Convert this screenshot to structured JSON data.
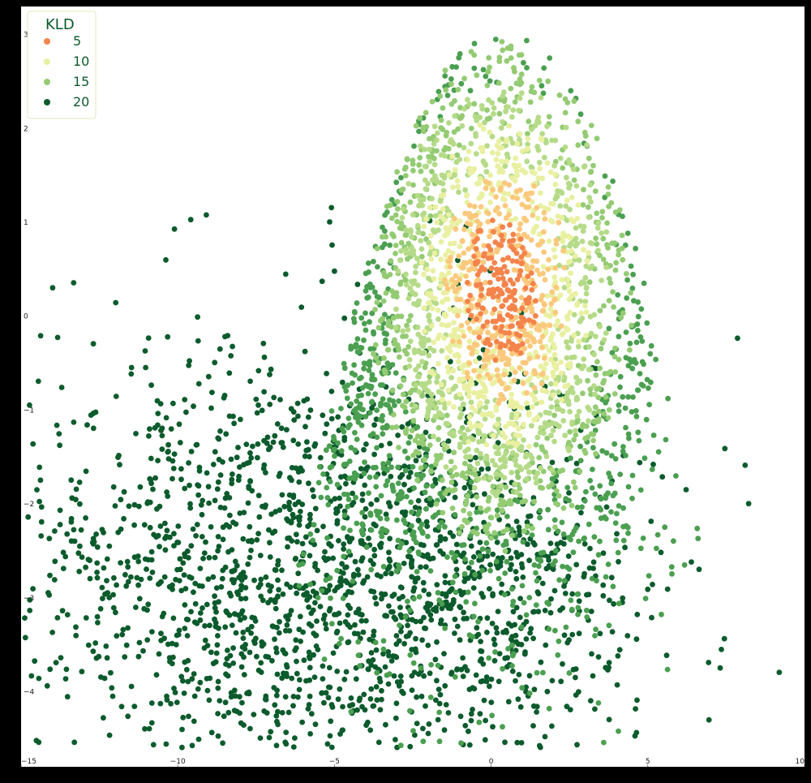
{
  "chart_data": {
    "type": "scatter",
    "title": "",
    "xlabel": "",
    "ylabel": "",
    "xlim": [
      -15,
      10
    ],
    "ylim": [
      -4.8,
      3.3
    ],
    "x_ticks": [
      -15,
      -10,
      -5,
      0,
      5,
      10
    ],
    "x_tick_labels": [
      "−15",
      "−10",
      "−5",
      "0",
      "5",
      "10"
    ],
    "y_ticks": [
      3,
      2,
      1,
      0,
      -1,
      -2,
      -3,
      -4
    ],
    "y_tick_labels": [
      "3",
      "2",
      "1",
      "0",
      "−1",
      "−2",
      "−3",
      "−4"
    ],
    "grid": false,
    "legend": {
      "title": "KLD",
      "position": "top-left",
      "entries": [
        {
          "label": "5",
          "color": "#f4844c"
        },
        {
          "label": "10",
          "color": "#e9f0a1"
        },
        {
          "label": "15",
          "color": "#94cb73"
        },
        {
          "label": "20",
          "color": "#0c5b2c"
        }
      ]
    },
    "colormap": [
      "#f4844c",
      "#fbc97d",
      "#e9f0a1",
      "#b5db88",
      "#94cb73",
      "#4a9f50",
      "#0c5b2c"
    ],
    "series": [
      {
        "name": "5",
        "center_x": 0.2,
        "center_y": -0.1,
        "spread_x": 2.2,
        "spread_y": 1.6,
        "count": 1400
      },
      {
        "name": "10",
        "center_x": -0.5,
        "center_y": 0.2,
        "spread_x": 3.5,
        "spread_y": 1.9,
        "count": 1600
      },
      {
        "name": "15",
        "center_x": -2.0,
        "center_y": -1.0,
        "spread_x": 4.5,
        "spread_y": 1.8,
        "count": 1200
      },
      {
        "name": "20",
        "center_x": -6.0,
        "center_y": -2.8,
        "spread_x": 4.8,
        "spread_y": 1.2,
        "count": 1800
      }
    ]
  }
}
